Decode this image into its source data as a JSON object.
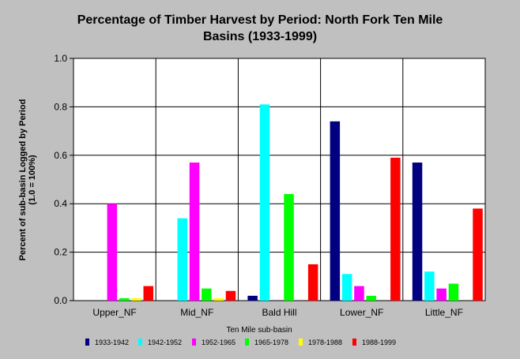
{
  "chart_data": {
    "type": "bar",
    "title_lines": [
      "Percentage of Timber Harvest by Period: North Fork Ten Mile",
      "Basins (1933-1999)"
    ],
    "ylabel_lines": [
      "Percent of sub-basin Logged by Period",
      "(1.0 = 100%)"
    ],
    "xlabel": "Ten Mile sub-basin",
    "categories": [
      "Upper_NF",
      "Mid_NF",
      "Bald Hill",
      "Lower_NF",
      "Little_NF"
    ],
    "ylim": [
      0,
      1.0
    ],
    "yticks": [
      "0.0",
      "0.2",
      "0.4",
      "0.6",
      "0.8",
      "1.0"
    ],
    "grid": true,
    "legend_position": "bottom",
    "series": [
      {
        "name": "1933-1942",
        "color": "#000080",
        "values": [
          0,
          0,
          0.02,
          0.74,
          0.57
        ]
      },
      {
        "name": "1942-1952",
        "color": "#00ffff",
        "values": [
          0,
          0.34,
          0.81,
          0.11,
          0.12
        ]
      },
      {
        "name": "1952-1965",
        "color": "#ff00ff",
        "values": [
          0.4,
          0.57,
          0,
          0.06,
          0.05
        ]
      },
      {
        "name": "1965-1978",
        "color": "#00ff00",
        "values": [
          0.01,
          0.05,
          0.44,
          0.02,
          0.07
        ]
      },
      {
        "name": "1978-1988",
        "color": "#ffff00",
        "values": [
          0.01,
          0.01,
          0,
          0,
          0
        ]
      },
      {
        "name": "1988-1999",
        "color": "#ff0000",
        "values": [
          0.06,
          0.04,
          0.15,
          0.59,
          0.38
        ]
      }
    ]
  }
}
